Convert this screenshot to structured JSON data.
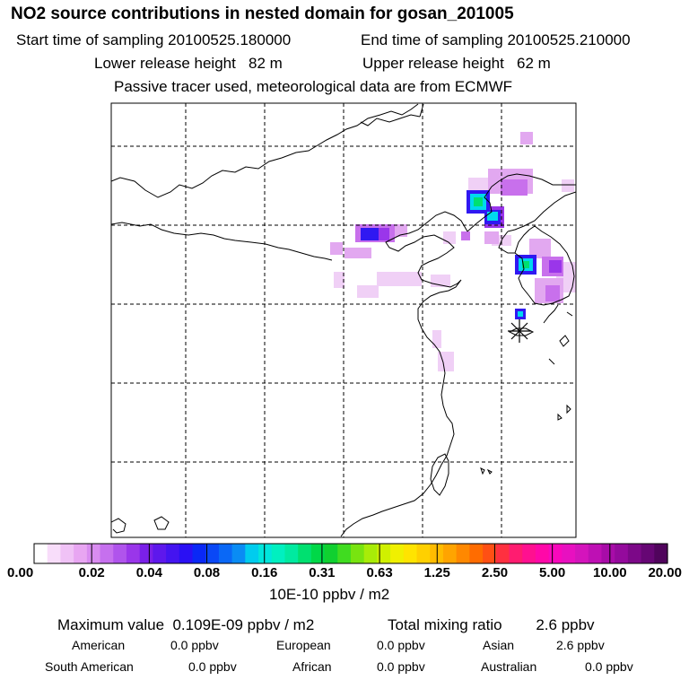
{
  "header": {
    "title": "NO2 source contributions in nested domain for gosan_201005",
    "start_label": "Start time of sampling 20100525.180000",
    "end_label": "End time of sampling 20100525.210000",
    "lower_label": "Lower release height   82 m",
    "upper_label": "Upper release height   62 m",
    "tracer_note": "Passive tracer used, meteorological data are from ECMWF"
  },
  "colorbar": {
    "labels": [
      "0.00",
      "0.02",
      "0.04",
      "0.08",
      "0.16",
      "0.31",
      "0.63",
      "1.25",
      "2.50",
      "5.00",
      "10.00",
      "20.00"
    ],
    "units": "10E-10 ppbv / m2",
    "colors": [
      "#ffffff",
      "#f8ddfa",
      "#f0c2f6",
      "#e8a6f2",
      "#d98cf0",
      "#c670ee",
      "#b054ec",
      "#9a36ea",
      "#7a20e8",
      "#5e18ec",
      "#4414f0",
      "#2a10f4",
      "#0a28f6",
      "#0a48f6",
      "#0a68f6",
      "#0a8cf4",
      "#00ccee",
      "#00e6dc",
      "#00f0c0",
      "#00eaa0",
      "#00e070",
      "#00d848",
      "#10d030",
      "#40dc20",
      "#78e410",
      "#a8ec08",
      "#d0f000",
      "#f0f000",
      "#ffe400",
      "#ffd000",
      "#ffbc00",
      "#ffa400",
      "#ff8800",
      "#ff6c00",
      "#ff5014",
      "#ff3040",
      "#ff1c70",
      "#ff1090",
      "#ff08a8",
      "#f808bc",
      "#e810c0",
      "#d414bc",
      "#be10b4",
      "#a80ca8",
      "#940a9c",
      "#7c0888",
      "#660674",
      "#50045c"
    ]
  },
  "stats": {
    "max_line": "Maximum value  0.109E-09 ppbv / m2",
    "total_line": "Total mixing ratio        2.6 ppbv",
    "american_label": "American",
    "american_value": "0.0 ppbv",
    "european_label": "European",
    "european_value": "0.0 ppbv",
    "asian_label": "Asian",
    "asian_value": "2.6 ppbv",
    "south_american_label": "South American",
    "south_american_value": "0.0 ppbv",
    "african_label": "African",
    "african_value": "0.0 ppbv",
    "australian_label": "Australian",
    "australian_value": "0.0 ppbv"
  },
  "map": {
    "receptor": "gosan",
    "plume_colors": {
      "pale": "#f0d0f6",
      "light": "#e2a8f0",
      "mid": "#c870ec",
      "purple": "#9a36ea",
      "blue": "#3018f2",
      "cyan": "#00d8ee",
      "green": "#00e070"
    }
  }
}
